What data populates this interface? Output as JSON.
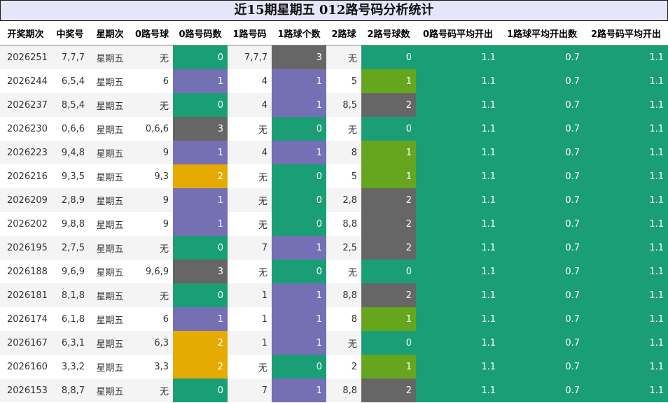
{
  "title": "近15期星期五 012路号码分析统计",
  "columns": [
    "开奖期次",
    "中奖号",
    "星期次",
    "0路号球",
    "0路号码数",
    "1路号码",
    "1路球个数",
    "2路球",
    "2路号球数",
    "0路号码平均开出",
    "1路球平均开出数",
    "2路号码平均开出"
  ],
  "rows": [
    [
      "2026251",
      "7,7,7",
      "星期五",
      "无",
      "0",
      "7,7,7",
      "3",
      "无",
      "0",
      "1.1",
      "0.7",
      "1.1"
    ],
    [
      "2026244",
      "6,5,4",
      "星期五",
      "6",
      "1",
      "4",
      "1",
      "5",
      "1",
      "1.1",
      "0.7",
      "1.1"
    ],
    [
      "2026237",
      "8,5,4",
      "星期五",
      "无",
      "0",
      "4",
      "1",
      "8,5",
      "2",
      "1.1",
      "0.7",
      "1.1"
    ],
    [
      "2026230",
      "0,6,6",
      "星期五",
      "0,6,6",
      "3",
      "无",
      "0",
      "无",
      "0",
      "1.1",
      "0.7",
      "1.1"
    ],
    [
      "2026223",
      "9,4,8",
      "星期五",
      "9",
      "1",
      "4",
      "1",
      "8",
      "1",
      "1.1",
      "0.7",
      "1.1"
    ],
    [
      "2026216",
      "9,3,5",
      "星期五",
      "9,3",
      "2",
      "无",
      "0",
      "5",
      "1",
      "1.1",
      "0.7",
      "1.1"
    ],
    [
      "2026209",
      "2,8,9",
      "星期五",
      "9",
      "1",
      "无",
      "0",
      "2,8",
      "2",
      "1.1",
      "0.7",
      "1.1"
    ],
    [
      "2026202",
      "9,8,8",
      "星期五",
      "9",
      "1",
      "无",
      "0",
      "8,8",
      "2",
      "1.1",
      "0.7",
      "1.1"
    ],
    [
      "2026195",
      "2,7,5",
      "星期五",
      "无",
      "0",
      "7",
      "1",
      "2,5",
      "2",
      "1.1",
      "0.7",
      "1.1"
    ],
    [
      "2026188",
      "9,6,9",
      "星期五",
      "9,6,9",
      "3",
      "无",
      "0",
      "无",
      "0",
      "1.1",
      "0.7",
      "1.1"
    ],
    [
      "2026181",
      "8,1,8",
      "星期五",
      "无",
      "0",
      "1",
      "1",
      "8,8",
      "2",
      "1.1",
      "0.7",
      "1.1"
    ],
    [
      "2026174",
      "6,1,8",
      "星期五",
      "6",
      "1",
      "1",
      "1",
      "8",
      "1",
      "1.1",
      "0.7",
      "1.1"
    ],
    [
      "2026167",
      "6,3,1",
      "星期五",
      "6,3",
      "2",
      "1",
      "1",
      "无",
      "0",
      "1.1",
      "0.7",
      "1.1"
    ],
    [
      "2026160",
      "3,3,2",
      "星期五",
      "3,3",
      "2",
      "无",
      "0",
      "2",
      "1",
      "1.1",
      "0.7",
      "1.1"
    ],
    [
      "2026153",
      "8,8,7",
      "星期五",
      "无",
      "0",
      "7",
      "1",
      "8,8",
      "2",
      "1.1",
      "0.7",
      "1.1"
    ]
  ]
}
